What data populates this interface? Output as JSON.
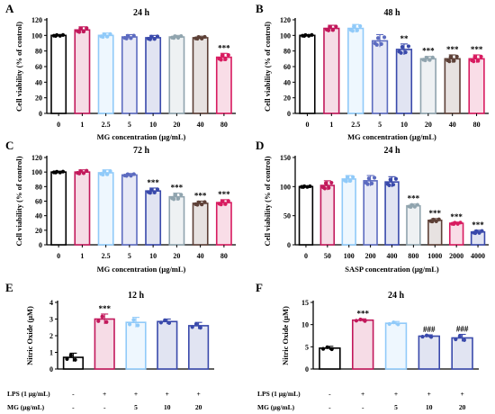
{
  "chart_data": [
    {
      "panel": "A",
      "type": "bar",
      "title": "24 h",
      "xlabel": "MG concentration (μg/mL)",
      "ylabel": "Cell viability (% of control)",
      "ylim": [
        0,
        120
      ],
      "yticks": [
        0,
        20,
        40,
        60,
        80,
        100,
        120
      ],
      "categories": [
        "0",
        "1",
        "2.5",
        "5",
        "10",
        "20",
        "40",
        "80"
      ],
      "values": [
        100,
        107,
        100,
        98,
        97,
        98,
        97,
        72
      ],
      "errors": [
        1,
        4,
        3,
        3,
        3,
        2,
        2,
        5
      ],
      "significance": [
        "",
        "",
        "",
        "",
        "",
        "",
        "",
        "***"
      ],
      "colors": [
        "#000000",
        "#c2185b",
        "#90caf9",
        "#5c6bc0",
        "#3949ab",
        "#90a4ae",
        "#5d4037",
        "#d81b60"
      ]
    },
    {
      "panel": "B",
      "type": "bar",
      "title": "48 h",
      "xlabel": "MG concentration (μg/mL)",
      "ylabel": "Cell viability (% of control)",
      "ylim": [
        0,
        120
      ],
      "yticks": [
        0,
        20,
        40,
        60,
        80,
        100,
        120
      ],
      "categories": [
        "0",
        "1",
        "2.5",
        "5",
        "10",
        "20",
        "40",
        "80"
      ],
      "values": [
        100,
        109,
        109,
        93,
        82,
        70,
        70,
        70
      ],
      "errors": [
        1,
        4,
        5,
        8,
        7,
        3,
        5,
        5
      ],
      "significance": [
        "",
        "",
        "",
        "",
        "**",
        "***",
        "***",
        "***"
      ],
      "colors": [
        "#000000",
        "#c2185b",
        "#90caf9",
        "#5c6bc0",
        "#3949ab",
        "#90a4ae",
        "#5d4037",
        "#d81b60"
      ]
    },
    {
      "panel": "C",
      "type": "bar",
      "title": "72 h",
      "xlabel": "MG concentration (μg/mL)",
      "ylabel": "Cell viability (% of control)",
      "ylim": [
        0,
        120
      ],
      "yticks": [
        0,
        20,
        40,
        60,
        80,
        100,
        120
      ],
      "categories": [
        "0",
        "1",
        "2.5",
        "5",
        "10",
        "20",
        "40",
        "80"
      ],
      "values": [
        100,
        100,
        99,
        96,
        74,
        66,
        57,
        58
      ],
      "errors": [
        1,
        3,
        4,
        2,
        4,
        5,
        3,
        4
      ],
      "significance": [
        "",
        "",
        "",
        "",
        "***",
        "***",
        "***",
        "***"
      ],
      "colors": [
        "#000000",
        "#c2185b",
        "#90caf9",
        "#5c6bc0",
        "#3949ab",
        "#90a4ae",
        "#5d4037",
        "#d81b60"
      ]
    },
    {
      "panel": "D",
      "type": "bar",
      "title": "24 h",
      "xlabel": "SASP concentration (μg/mL)",
      "ylabel": "Cell viability (% of control)",
      "ylim": [
        0,
        150
      ],
      "yticks": [
        0,
        50,
        100,
        150
      ],
      "categories": [
        "0",
        "50",
        "100",
        "200",
        "400",
        "800",
        "1000",
        "2000",
        "4000"
      ],
      "values": [
        100,
        102,
        113,
        110,
        108,
        67,
        42,
        37,
        22
      ],
      "errors": [
        1,
        8,
        6,
        9,
        9,
        3,
        3,
        2,
        3
      ],
      "significance": [
        "",
        "",
        "",
        "",
        "",
        "***",
        "***",
        "***",
        "***"
      ],
      "colors": [
        "#000000",
        "#c2185b",
        "#90caf9",
        "#5c6bc0",
        "#3949ab",
        "#90a4ae",
        "#5d4037",
        "#d81b60",
        "#3949ab"
      ]
    },
    {
      "panel": "E",
      "type": "bar",
      "title": "12 h",
      "ylabel": "Nitric Oxide (μM)",
      "ylim": [
        0,
        4
      ],
      "yticks": [
        0,
        1,
        2,
        3,
        4
      ],
      "row_labels": [
        "LPS (1 μg/mL)",
        "MG (μg/mL)"
      ],
      "lps": [
        "-",
        "+",
        "+",
        "+",
        "+"
      ],
      "mg": [
        "-",
        "-",
        "5",
        "10",
        "20"
      ],
      "values": [
        0.7,
        3.0,
        2.8,
        2.85,
        2.6
      ],
      "errors": [
        0.25,
        0.3,
        0.3,
        0.15,
        0.2
      ],
      "significance": [
        "",
        "***",
        "",
        "",
        ""
      ],
      "colors": [
        "#000000",
        "#c2185b",
        "#90caf9",
        "#3949ab",
        "#3949ab"
      ]
    },
    {
      "panel": "F",
      "type": "bar",
      "title": "24 h",
      "ylabel": "Nitric Oxide (μM)",
      "ylim": [
        0,
        15
      ],
      "yticks": [
        0,
        5,
        10,
        15
      ],
      "row_labels": [
        "LPS (1 μg/mL)",
        "MG (μg/mL)"
      ],
      "lps": [
        "-",
        "+",
        "+",
        "+",
        "+"
      ],
      "mg": [
        "-",
        "-",
        "5",
        "10",
        "20"
      ],
      "values": [
        4.7,
        11.0,
        10.3,
        7.4,
        7.0
      ],
      "errors": [
        0.4,
        0.3,
        0.4,
        0.3,
        0.8
      ],
      "significance": [
        "",
        "***",
        "",
        "###",
        "###"
      ],
      "colors": [
        "#000000",
        "#c2185b",
        "#90caf9",
        "#3949ab",
        "#3949ab"
      ]
    }
  ]
}
